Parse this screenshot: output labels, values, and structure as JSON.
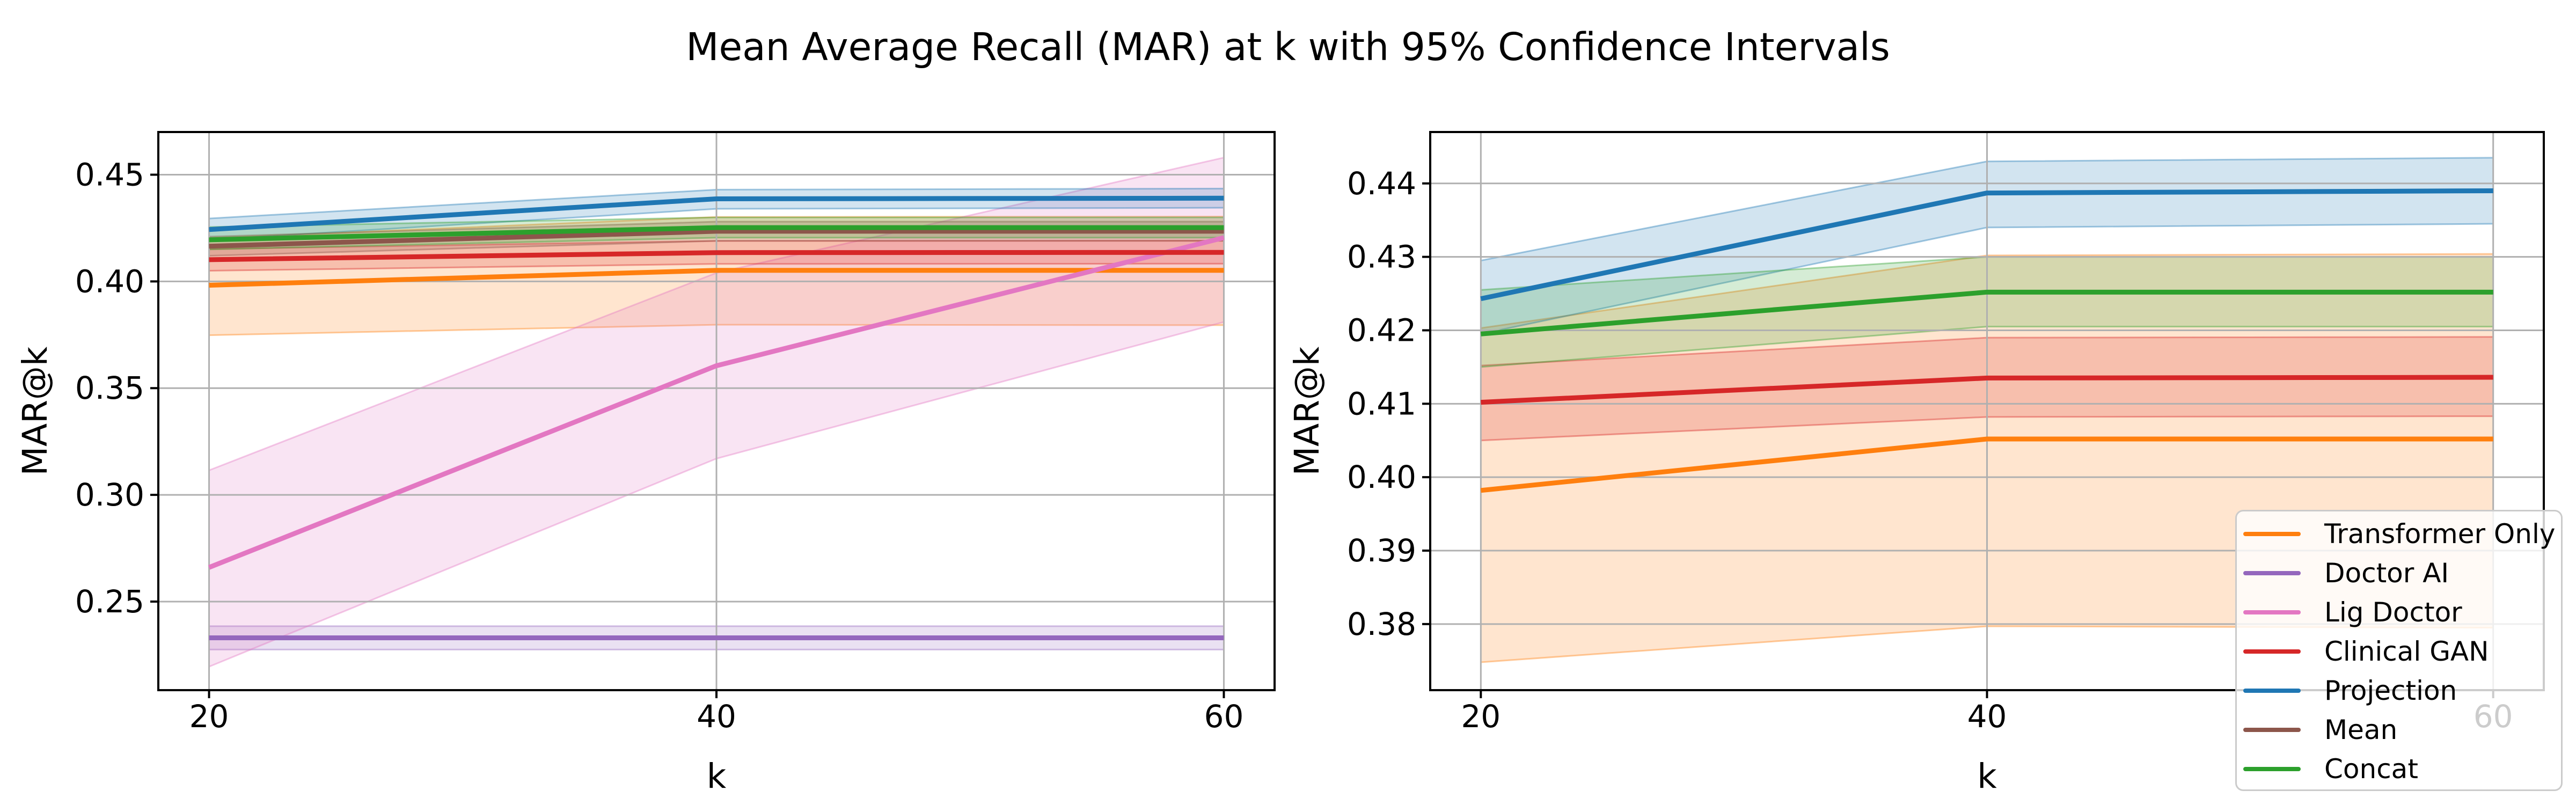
{
  "figure": {
    "title": "Mean Average Recall (MAR) at k with 95% Confidence Intervals",
    "background": "#ffffff",
    "text_color": "#000000",
    "grid_color": "#b0b0b0",
    "spine_color": "#000000"
  },
  "legend": {
    "position": "lower right of right subplot",
    "entries": [
      {
        "label": "Transformer Only",
        "color": "#ff7f0e"
      },
      {
        "label": "Doctor AI",
        "color": "#9467bd"
      },
      {
        "label": "Lig Doctor",
        "color": "#e377c2"
      },
      {
        "label": "Clinical GAN",
        "color": "#d62728"
      },
      {
        "label": "Projection",
        "color": "#1f77b4"
      },
      {
        "label": "Mean",
        "color": "#8c564b"
      },
      {
        "label": "Concat",
        "color": "#2ca02c"
      }
    ]
  },
  "chart_data": [
    {
      "type": "line",
      "title": "",
      "xlabel": "k",
      "ylabel": "MAR@k",
      "grid": true,
      "x": [
        20,
        40,
        60
      ],
      "xlim": [
        18,
        62
      ],
      "ylim": [
        0.2085,
        0.47
      ],
      "xticks": [
        20,
        40,
        60
      ],
      "xtick_labels": [
        "20",
        "40",
        "60"
      ],
      "yticks": [
        0.25,
        0.3,
        0.35,
        0.4,
        0.45
      ],
      "ytick_labels": [
        "0.25",
        "0.30",
        "0.35",
        "0.40",
        "0.45"
      ],
      "band_alpha": 0.2,
      "series": [
        {
          "name": "Transformer Only",
          "color": "#ff7f0e",
          "values": [
            0.3982,
            0.4052,
            0.4052
          ],
          "ci_low": [
            0.3748,
            0.3797,
            0.3795
          ],
          "ci_high": [
            0.4203,
            0.4302,
            0.4304
          ]
        },
        {
          "name": "Doctor AI",
          "color": "#9467bd",
          "values": [
            0.233,
            0.233,
            0.233
          ],
          "ci_low": [
            0.2275,
            0.2275,
            0.2275
          ],
          "ci_high": [
            0.2385,
            0.2385,
            0.2385
          ]
        },
        {
          "name": "Lig Doctor",
          "color": "#e377c2",
          "values": [
            0.266,
            0.3605,
            0.4205
          ],
          "ci_low": [
            0.2195,
            0.317,
            0.381
          ],
          "ci_high": [
            0.3115,
            0.404,
            0.458
          ]
        },
        {
          "name": "Clinical GAN",
          "color": "#d62728",
          "values": [
            0.4102,
            0.4135,
            0.4136
          ],
          "ci_low": [
            0.405,
            0.4082,
            0.4083
          ],
          "ci_high": [
            0.4152,
            0.419,
            0.4191
          ]
        },
        {
          "name": "Projection",
          "color": "#1f77b4",
          "values": [
            0.4243,
            0.4387,
            0.439
          ],
          "ci_low": [
            0.4195,
            0.434,
            0.4345
          ],
          "ci_high": [
            0.4295,
            0.443,
            0.4435
          ]
        },
        {
          "name": "Mean",
          "color": "#8c564b",
          "values": [
            0.4165,
            0.4235,
            0.4235
          ],
          "ci_low": [
            0.412,
            0.419,
            0.419
          ],
          "ci_high": [
            0.421,
            0.428,
            0.428
          ]
        },
        {
          "name": "Concat",
          "color": "#2ca02c",
          "values": [
            0.4195,
            0.4252,
            0.4252
          ],
          "ci_low": [
            0.415,
            0.4205,
            0.4205
          ],
          "ci_high": [
            0.4255,
            0.43,
            0.43
          ]
        }
      ]
    },
    {
      "type": "line",
      "title": "",
      "xlabel": "k",
      "ylabel": "MAR@k",
      "grid": true,
      "x": [
        20,
        40,
        60
      ],
      "xlim": [
        18,
        62
      ],
      "ylim": [
        0.371,
        0.447
      ],
      "xticks": [
        20,
        40,
        60
      ],
      "xtick_labels": [
        "20",
        "40",
        "60"
      ],
      "yticks": [
        0.38,
        0.39,
        0.4,
        0.41,
        0.42,
        0.43,
        0.44
      ],
      "ytick_labels": [
        "0.38",
        "0.39",
        "0.40",
        "0.41",
        "0.42",
        "0.43",
        "0.44"
      ],
      "band_alpha": 0.2,
      "series": [
        {
          "name": "Transformer Only",
          "color": "#ff7f0e",
          "values": [
            0.3982,
            0.4052,
            0.4052
          ],
          "ci_low": [
            0.3748,
            0.3797,
            0.3795
          ],
          "ci_high": [
            0.4203,
            0.4302,
            0.4304
          ]
        },
        {
          "name": "Clinical GAN",
          "color": "#d62728",
          "values": [
            0.4102,
            0.4135,
            0.4136
          ],
          "ci_low": [
            0.405,
            0.4082,
            0.4083
          ],
          "ci_high": [
            0.4152,
            0.419,
            0.4191
          ]
        },
        {
          "name": "Projection",
          "color": "#1f77b4",
          "values": [
            0.4243,
            0.4387,
            0.439
          ],
          "ci_low": [
            0.4195,
            0.434,
            0.4345
          ],
          "ci_high": [
            0.4295,
            0.443,
            0.4435
          ]
        },
        {
          "name": "Concat",
          "color": "#2ca02c",
          "values": [
            0.4195,
            0.4252,
            0.4252
          ],
          "ci_low": [
            0.415,
            0.4205,
            0.4205
          ],
          "ci_high": [
            0.4255,
            0.43,
            0.43
          ]
        }
      ]
    }
  ]
}
